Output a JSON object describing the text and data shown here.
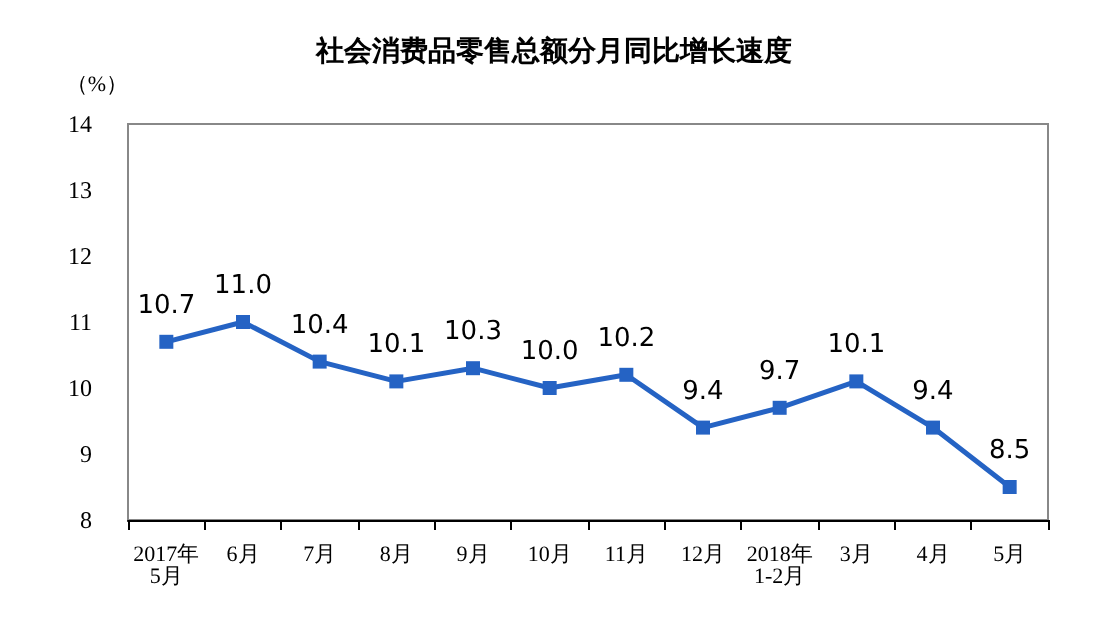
{
  "chart_data": {
    "type": "line",
    "title": "社会消费品零售总额分月同比增长速度",
    "ylabel": "（%）",
    "categories": [
      "2017年\n5月",
      "6月",
      "7月",
      "8月",
      "9月",
      "10月",
      "11月",
      "12月",
      "2018年\n1-2月",
      "3月",
      "4月",
      "5月"
    ],
    "series": [
      {
        "color": "#2563c4",
        "values": [
          10.7,
          11.0,
          10.4,
          10.1,
          10.3,
          10.0,
          10.2,
          9.4,
          9.7,
          10.1,
          9.4,
          8.5
        ],
        "value_labels": [
          "10.7",
          "11.0",
          "10.4",
          "10.1",
          "10.3",
          "10.0",
          "10.2",
          "9.4",
          "9.7",
          "10.1",
          "9.4",
          "8.5"
        ]
      }
    ],
    "ylim": [
      8,
      14
    ],
    "yticks": [
      8,
      9,
      10,
      11,
      12,
      13,
      14
    ],
    "grid": false,
    "marker": "square",
    "line_style": "solid"
  }
}
